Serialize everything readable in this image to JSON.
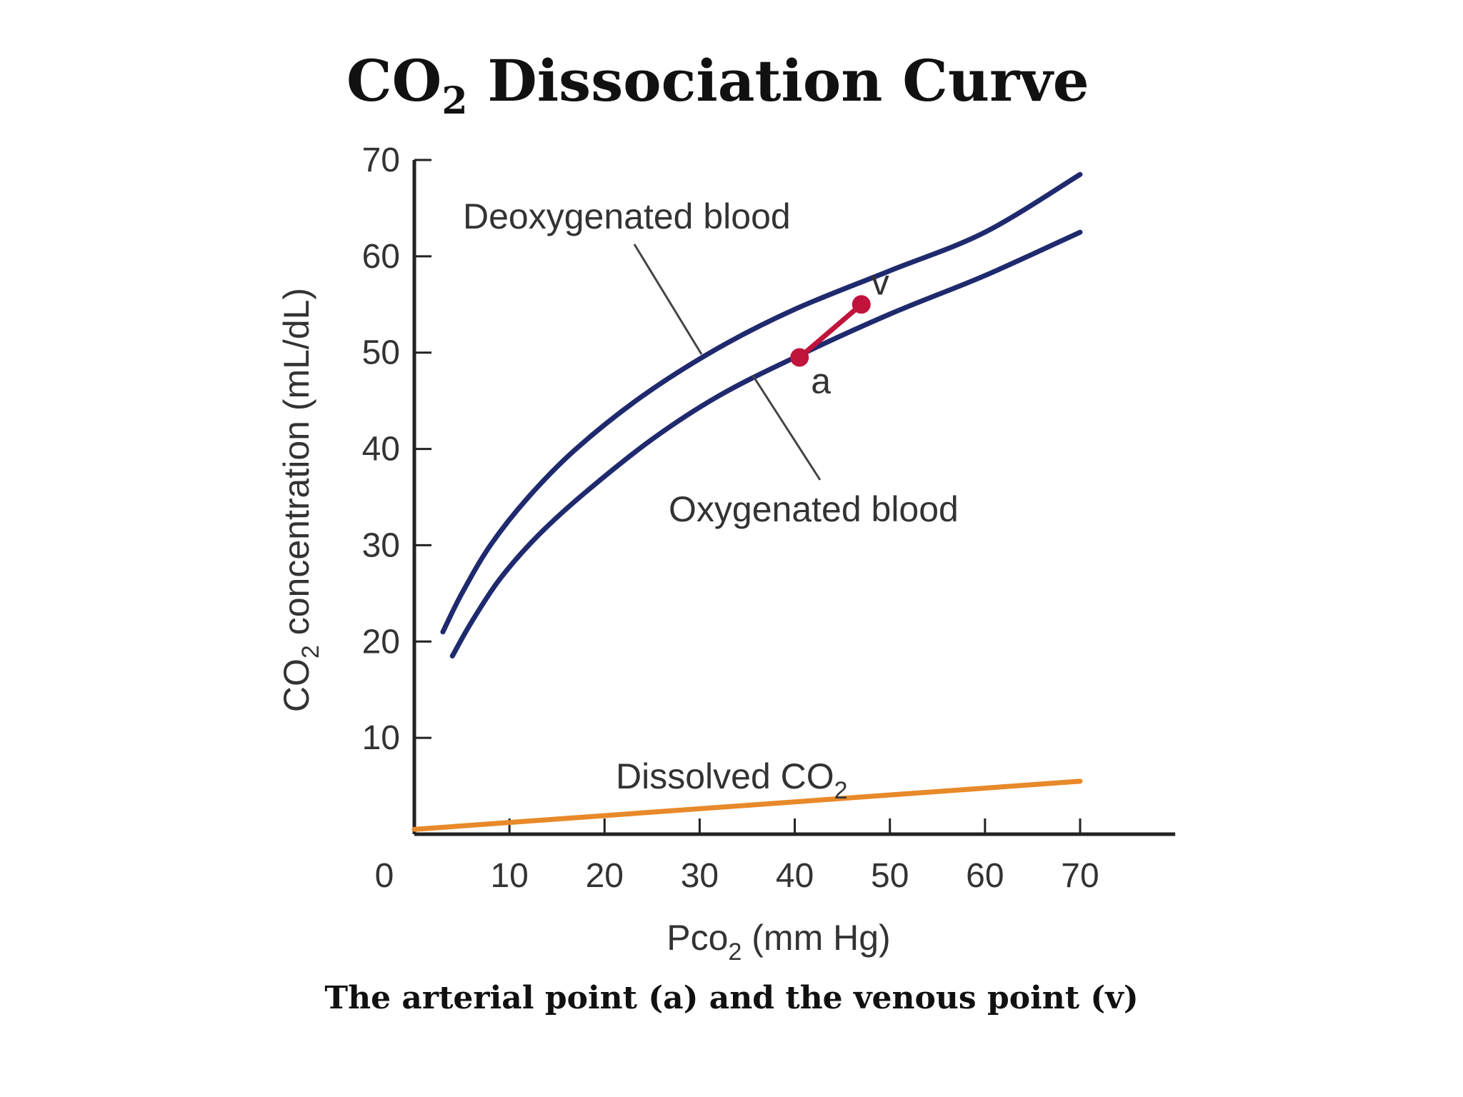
{
  "slide": {
    "title_main": "CO",
    "title_sub": "2",
    "title_rest": " Dissociation Curve",
    "caption": "The arterial point (a) and the venous point (v)"
  },
  "chart_data": {
    "type": "line",
    "ylabel_main": "CO",
    "ylabel_sub": "2",
    "ylabel_rest": " concentration (mL/dL)",
    "xlabel_main": "Pco",
    "xlabel_sub": "2",
    "xlabel_rest": " (mm Hg)",
    "xlim": [
      0,
      80
    ],
    "ylim": [
      0,
      70
    ],
    "x_ticks": [
      0,
      10,
      20,
      30,
      40,
      50,
      60,
      70
    ],
    "y_ticks": [
      10,
      20,
      30,
      40,
      50,
      60,
      70
    ],
    "origin_label": "0",
    "series": [
      {
        "name": "Deoxygenated blood",
        "color": "#1f2a6e",
        "points": [
          [
            3,
            21
          ],
          [
            5,
            25
          ],
          [
            8,
            30
          ],
          [
            12,
            35
          ],
          [
            17,
            40
          ],
          [
            24,
            45.5
          ],
          [
            32,
            50.5
          ],
          [
            40,
            54.5
          ],
          [
            50,
            58.5
          ],
          [
            60,
            62.5
          ],
          [
            70,
            68.5
          ]
        ]
      },
      {
        "name": "Oxygenated blood",
        "color": "#1f2a6e",
        "points": [
          [
            4,
            18.5
          ],
          [
            6,
            22
          ],
          [
            9,
            26.5
          ],
          [
            13,
            31
          ],
          [
            18,
            35.5
          ],
          [
            25,
            41
          ],
          [
            32,
            45.5
          ],
          [
            40,
            49.5
          ],
          [
            50,
            54
          ],
          [
            60,
            58
          ],
          [
            70,
            62.5
          ]
        ]
      },
      {
        "name": "Dissolved CO",
        "name_sub": "2",
        "color": "#e8892a",
        "points": [
          [
            0,
            0.5
          ],
          [
            70,
            5.5
          ]
        ]
      }
    ],
    "annotations": [
      {
        "label": "a",
        "x": 40.5,
        "y": 49.5,
        "description_point": "arterial"
      },
      {
        "label": "v",
        "x": 47,
        "y": 55,
        "description_point": "venous"
      }
    ],
    "point_color": "#c0143c",
    "axis_color": "#222222",
    "leader_color": "#444444"
  }
}
